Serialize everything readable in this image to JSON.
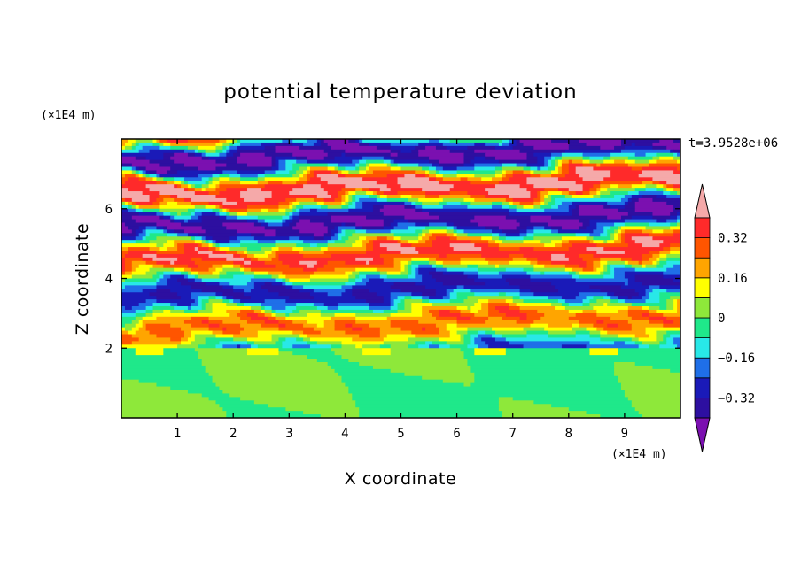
{
  "chart_data": {
    "type": "heatmap",
    "title": "potential temperature deviation",
    "xlabel": "X coordinate",
    "ylabel": "Z coordinate",
    "x_unit": "(×1E4 m)",
    "y_unit": "(×1E4 m)",
    "time_label": "t=3.9528e+06",
    "xlim": [
      0,
      10
    ],
    "ylim": [
      0,
      8
    ],
    "x_ticks": [
      "1",
      "2",
      "3",
      "4",
      "5",
      "6",
      "7",
      "8",
      "9"
    ],
    "y_ticks": [
      "2",
      "4",
      "6"
    ],
    "boundary_layer_top": 2,
    "colorbar": {
      "levels": [
        -0.4,
        -0.32,
        -0.24,
        -0.16,
        -0.08,
        0,
        0.08,
        0.16,
        0.24,
        0.32,
        0.4
      ],
      "tick_labels": [
        "0.32",
        "0.16",
        "0",
        "−0.16",
        "−0.32"
      ],
      "tick_values": [
        0.32,
        0.16,
        0,
        -0.16,
        -0.32
      ],
      "colors": [
        "#7b10b0",
        "#2d0fa0",
        "#1a1ab8",
        "#1f6fe8",
        "#28e8e8",
        "#1fe88a",
        "#8ee83a",
        "#ffff00",
        "#ffa500",
        "#ff5500",
        "#ff2a2a",
        "#f5a9a9"
      ],
      "extend": "both"
    }
  }
}
